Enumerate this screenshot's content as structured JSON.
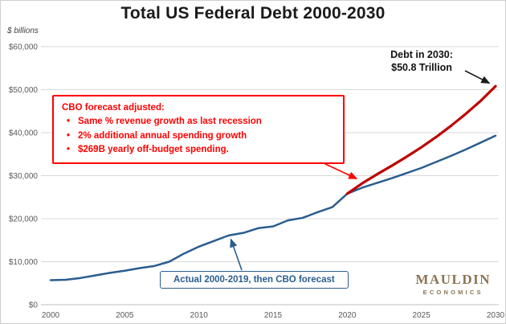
{
  "title": "Total US Federal Debt 2000-2030",
  "axis_note": "$ billions",
  "annotations": {
    "red_box": {
      "heading": "CBO forecast adjusted:",
      "bullet_char": "•",
      "bullets": [
        "Same % revenue growth as last recession",
        "2% additional annual spending growth",
        "$269B yearly off-budget spending."
      ]
    },
    "debt_label": {
      "line1": "Debt in 2030:",
      "line2": "$50.8 Trillion"
    },
    "blue_box": "Actual 2000-2019, then CBO forecast"
  },
  "logo": {
    "line1": "MAULDIN",
    "line2": "ECONOMICS"
  },
  "colors": {
    "blue": "#2a5d8f",
    "red": "#bf0000",
    "annotation_red": "#ff0000",
    "grid": "#d9d9d9",
    "axis": "#bfbfbf",
    "black_arrow": "#1a1a1a",
    "logo": "#8c7351"
  },
  "chart_data": {
    "type": "line",
    "title": "Total US Federal Debt 2000-2030",
    "ylabel": "$ billions",
    "xlabel": "",
    "xlim": [
      2000,
      2030
    ],
    "ylim": [
      0,
      60000
    ],
    "grid": true,
    "legend": false,
    "xticks": [
      2000,
      2005,
      2010,
      2015,
      2020,
      2025,
      2030
    ],
    "yticks": [
      0,
      10000,
      20000,
      30000,
      40000,
      50000,
      60000
    ],
    "ytick_labels": [
      "$0",
      "$10,000",
      "$20,000",
      "$30,000",
      "$40,000",
      "$50,000",
      "$60,000"
    ],
    "x": [
      2000,
      2001,
      2002,
      2003,
      2004,
      2005,
      2006,
      2007,
      2008,
      2009,
      2010,
      2011,
      2012,
      2013,
      2014,
      2015,
      2016,
      2017,
      2018,
      2019,
      2020,
      2021,
      2022,
      2023,
      2024,
      2025,
      2026,
      2027,
      2028,
      2029,
      2030
    ],
    "series": [
      {
        "name": "Actual 2000-2019, then CBO forecast",
        "color": "#2a5d8f",
        "values": [
          5700,
          5800,
          6200,
          6800,
          7400,
          7900,
          8500,
          9000,
          10000,
          11900,
          13500,
          14800,
          16100,
          16700,
          17800,
          18200,
          19600,
          20200,
          21500,
          22700,
          25800,
          27200,
          28300,
          29400,
          30600,
          31800,
          33200,
          34600,
          36100,
          37700,
          39300
        ]
      },
      {
        "name": "CBO forecast adjusted",
        "color": "#bf0000",
        "values": [
          null,
          null,
          null,
          null,
          null,
          null,
          null,
          null,
          null,
          null,
          null,
          null,
          null,
          null,
          null,
          null,
          null,
          null,
          null,
          null,
          25800,
          28200,
          30300,
          32300,
          34400,
          36600,
          39000,
          41600,
          44400,
          47400,
          50800
        ]
      }
    ]
  }
}
